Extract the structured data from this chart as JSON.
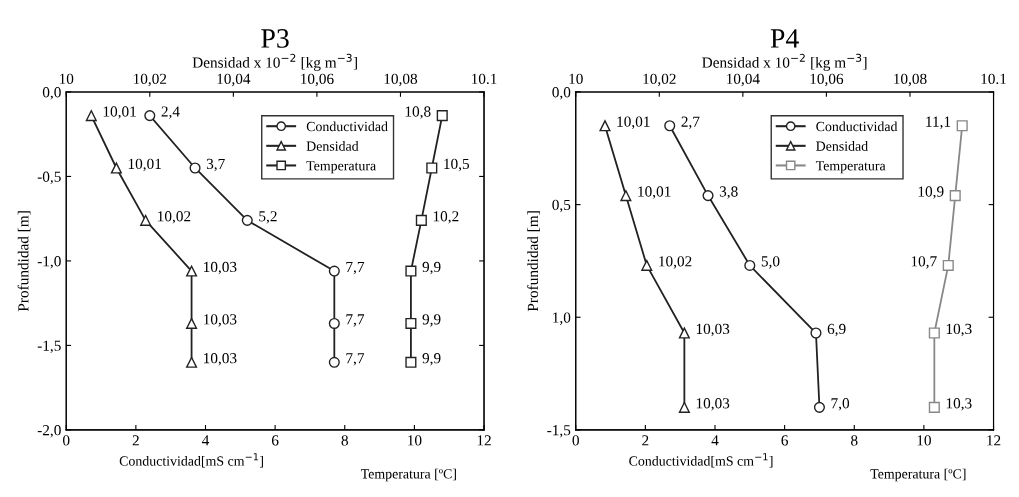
{
  "chart_data": [
    {
      "type": "line",
      "orientation": "horizontal",
      "title": "P3",
      "xlabel": "Conductividad[mS cm$^{−1}$]",
      "ylabel": "Profundidad [m]",
      "x2label": "Densidad x 10$^{−2}$ [kg m$^{−3}$]",
      "annotations": [
        "Temperatura [ºC]"
      ],
      "xlim": [
        0,
        12
      ],
      "xticks": [
        0,
        2,
        4,
        6,
        8,
        10,
        12
      ],
      "x2lim": [
        10,
        10.1
      ],
      "x2ticks": [
        {
          "value": 10,
          "label": "10"
        },
        {
          "value": 10.02,
          "label": "10,02"
        },
        {
          "value": 10.04,
          "label": "10,04"
        },
        {
          "value": 10.06,
          "label": "10,06"
        },
        {
          "value": 10.08,
          "label": "10,08"
        },
        {
          "value": 10.1,
          "label": "10.1"
        }
      ],
      "ylim": [
        -2.0,
        0
      ],
      "yticks": [
        {
          "value": 0,
          "label": "0,0"
        },
        {
          "value": -0.5,
          "label": "-0,5"
        },
        {
          "value": -1.0,
          "label": "-1,0"
        },
        {
          "value": -1.5,
          "label": "-1,5"
        },
        {
          "value": -2.0,
          "label": "-2,0"
        }
      ],
      "legend": "top right",
      "line_style": "solid",
      "series": [
        {
          "name": "Conductividad",
          "color": "#222222",
          "marker": "circle",
          "x": [
            -0.14,
            -0.45,
            -0.76,
            -1.06,
            -1.37,
            -1.6
          ],
          "values": [
            2.4,
            3.7,
            5.2,
            7.7,
            7.7,
            7.7
          ],
          "value_labels": [
            "2,4",
            "3,7",
            "5,2",
            "7,7",
            "7,7",
            "7,7"
          ]
        },
        {
          "name": "Densidad",
          "color": "#222222",
          "marker": "triangle",
          "axis": "x2",
          "x": [
            -0.14,
            -0.45,
            -0.76,
            -1.06,
            -1.37,
            -1.6
          ],
          "values": [
            10.006,
            10.012,
            10.019,
            10.03,
            10.03,
            10.03
          ],
          "value_labels": [
            "10,01",
            "10,01",
            "10,02",
            "10,03",
            "10,03",
            "10,03"
          ]
        },
        {
          "name": "Temperatura",
          "color": "#222222",
          "marker": "square",
          "x": [
            -0.14,
            -0.45,
            -0.76,
            -1.06,
            -1.37,
            -1.6
          ],
          "values": [
            10.8,
            10.5,
            10.2,
            9.9,
            9.9,
            9.9
          ],
          "value_labels": [
            "10,8",
            "10,5",
            "10,2",
            "9,9",
            "9,9",
            "9,9"
          ]
        }
      ]
    },
    {
      "type": "line",
      "orientation": "horizontal",
      "title": "P4",
      "xlabel": "Conductividad[mS cm$^{−1}$]",
      "ylabel": "Profundidad [m]",
      "x2label": "Densidad x 10$^{−2}$ [kg m$^{−3}$]",
      "annotations": [
        "Temperatura [ºC]"
      ],
      "xlim": [
        0,
        12
      ],
      "xticks": [
        0,
        2,
        4,
        6,
        8,
        10,
        12
      ],
      "x2lim": [
        10,
        10.1
      ],
      "x2ticks": [
        {
          "value": 10,
          "label": "10"
        },
        {
          "value": 10.02,
          "label": "10,02"
        },
        {
          "value": 10.04,
          "label": "10,04"
        },
        {
          "value": 10.06,
          "label": "10,06"
        },
        {
          "value": 10.08,
          "label": "10,08"
        },
        {
          "value": 10.1,
          "label": "10.1"
        }
      ],
      "ylim": [
        -1.5,
        0
      ],
      "yticks": [
        {
          "value": 0,
          "label": "0,0"
        },
        {
          "value": -0.5,
          "label": "0,5"
        },
        {
          "value": -1.0,
          "label": "1,0"
        },
        {
          "value": -1.5,
          "label": "-1,5"
        }
      ],
      "legend": "top right",
      "line_style": "solid",
      "series": [
        {
          "name": "Conductividad",
          "color": "#222222",
          "marker": "circle",
          "x": [
            -0.15,
            -0.46,
            -0.77,
            -1.07,
            -1.4
          ],
          "values": [
            2.7,
            3.8,
            5.0,
            6.9,
            7.0
          ],
          "value_labels": [
            "2,7",
            "3,8",
            "5,0",
            "6,9",
            "7,0"
          ]
        },
        {
          "name": "Densidad",
          "color": "#222222",
          "marker": "triangle",
          "axis": "x2",
          "x": [
            -0.15,
            -0.46,
            -0.77,
            -1.07,
            -1.4
          ],
          "values": [
            10.007,
            10.012,
            10.017,
            10.026,
            10.026
          ],
          "value_labels": [
            "10,01",
            "10,01",
            "10,02",
            "10,03",
            "10,03"
          ]
        },
        {
          "name": "Temperatura",
          "color": "#888888",
          "marker": "square",
          "x": [
            -0.15,
            -0.46,
            -0.77,
            -1.07,
            -1.4
          ],
          "values": [
            11.1,
            10.9,
            10.7,
            10.3,
            10.3
          ],
          "value_labels": [
            "11,1",
            "10,9",
            "10,7",
            "10,3",
            "10,3"
          ]
        }
      ]
    }
  ]
}
